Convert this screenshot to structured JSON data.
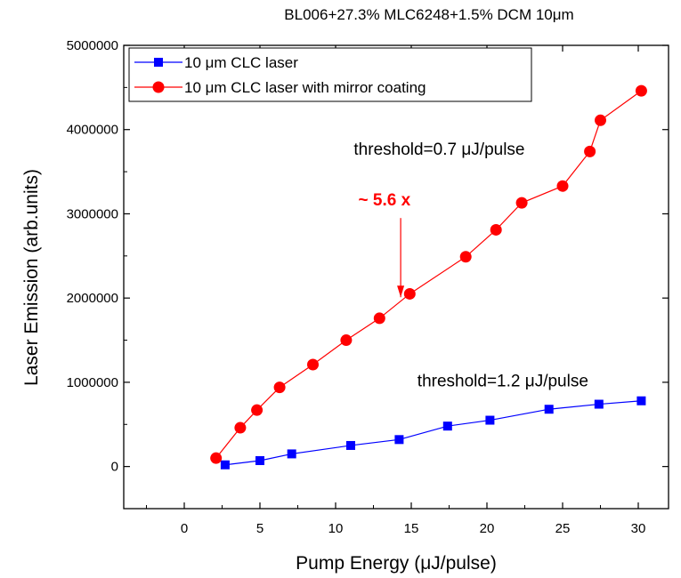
{
  "chart_data": {
    "type": "line",
    "title": "BL006+27.3% MLC6248+1.5% DCM 10μm",
    "xlabel": "Pump Energy (μJ/pulse)",
    "ylabel": "Laser Emission (arb.units)",
    "xlim": [
      -4,
      32
    ],
    "ylim": [
      -500000,
      5000000
    ],
    "xticks": [
      0,
      5,
      10,
      15,
      20,
      25,
      30
    ],
    "xtick_labels": [
      "0",
      "5",
      "10",
      "15",
      "20",
      "25",
      "30"
    ],
    "yticks": [
      0,
      1000000,
      2000000,
      3000000,
      4000000,
      5000000
    ],
    "ytick_labels": [
      "0",
      "1000000",
      "2000000",
      "3000000",
      "4000000",
      "5000000"
    ],
    "grid": false,
    "legend_position": "top-left",
    "series": [
      {
        "name": "10 μm CLC laser",
        "color": "#0000ff",
        "marker": "square",
        "x": [
          2.7,
          5.0,
          7.1,
          11.0,
          14.2,
          17.4,
          20.2,
          24.1,
          27.4,
          30.2
        ],
        "y": [
          20000,
          70000,
          150000,
          250000,
          320000,
          480000,
          550000,
          680000,
          740000,
          780000
        ]
      },
      {
        "name": "10 μm CLC laser with mirror coating",
        "color": "#ff0000",
        "marker": "circle",
        "x": [
          2.1,
          3.7,
          4.8,
          6.3,
          8.5,
          10.7,
          12.9,
          14.9,
          18.6,
          20.6,
          22.3,
          25.0,
          26.8,
          27.5,
          30.2
        ],
        "y": [
          100000,
          460000,
          670000,
          940000,
          1210000,
          1500000,
          1760000,
          2050000,
          2490000,
          2810000,
          3130000,
          3330000,
          3740000,
          4110000,
          4460000
        ]
      }
    ],
    "annotations": [
      {
        "text": "threshold=0.7 μJ/pulse",
        "x": 11.2,
        "y": 3700000,
        "color": "#000000"
      },
      {
        "text": "threshold=1.2 μJ/pulse",
        "x": 15.4,
        "y": 950000,
        "color": "#000000"
      },
      {
        "text": "~ 5.6 x",
        "x": 11.5,
        "y": 3100000,
        "color": "#ff0000",
        "bold": true
      }
    ],
    "arrow": {
      "from": [
        14.3,
        2950000
      ],
      "to": [
        14.3,
        2010000
      ],
      "color": "#ff0000"
    }
  }
}
